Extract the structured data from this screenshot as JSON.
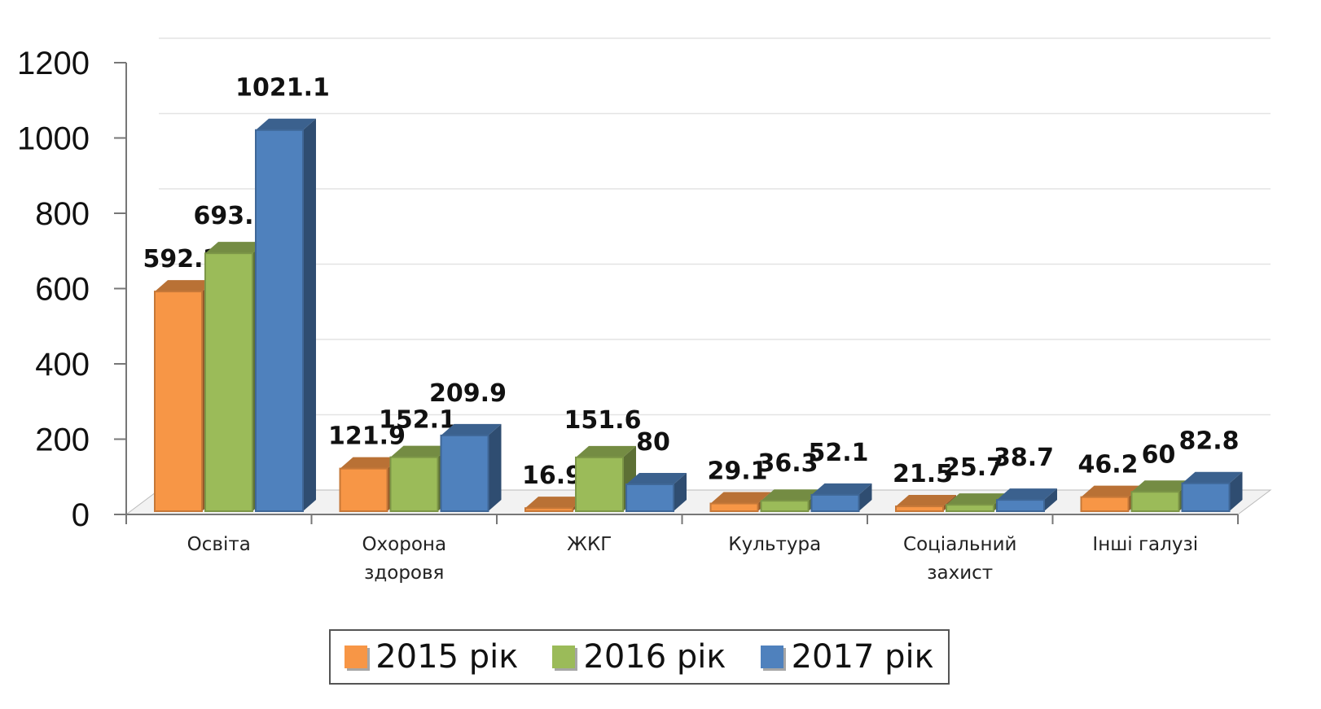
{
  "chart_data": {
    "type": "bar3d",
    "categories": [
      "Освіта",
      "Охорона здоровя",
      "ЖКГ",
      "Культура",
      "Соціальний захист",
      "Інші галузі"
    ],
    "series": [
      {
        "name": "2015 рік",
        "color": "#f79646",
        "values": [
          592.2,
          121.9,
          16.9,
          29.1,
          21.5,
          46.2
        ]
      },
      {
        "name": "2016 рік",
        "color": "#9bbb59",
        "values": [
          693.7,
          152.1,
          151.6,
          36.3,
          25.7,
          60
        ]
      },
      {
        "name": "2017 рік",
        "color": "#4f81bd",
        "values": [
          1021.1,
          209.9,
          80,
          52.1,
          38.7,
          82.8
        ]
      }
    ],
    "ylim": [
      0,
      1200
    ],
    "yticks": [
      0,
      200,
      400,
      600,
      800,
      1000,
      1200
    ],
    "grid": true,
    "legend": "bottom"
  }
}
